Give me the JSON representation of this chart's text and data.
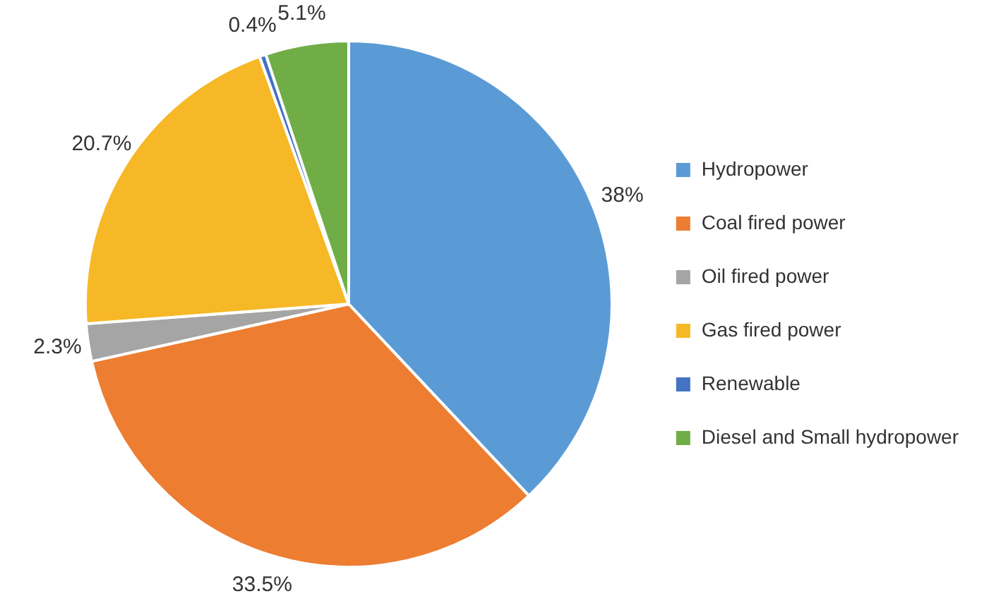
{
  "chart_data": {
    "type": "pie",
    "categories": [
      "Hydropower",
      "Coal fired power",
      "Oil fired power",
      "Gas fired power",
      "Renewable",
      "Diesel and Small hydropower"
    ],
    "values": [
      38,
      33.5,
      2.3,
      20.7,
      0.4,
      5.1
    ],
    "value_labels": [
      "38%",
      "33.5%",
      "2.3%",
      "20.7%",
      "0.4%",
      "5.1%"
    ],
    "colors": [
      "#5b9bd5",
      "#ed7d31",
      "#a5a5a5",
      "#f6b826",
      "#4472c4",
      "#70ad47"
    ],
    "legend": "right"
  }
}
